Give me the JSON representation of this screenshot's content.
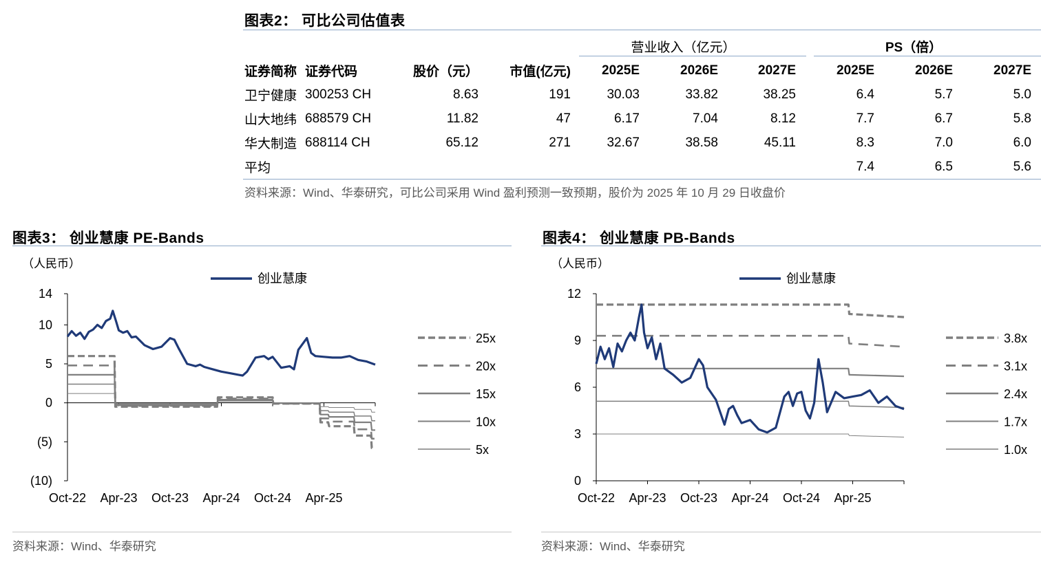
{
  "table": {
    "title": "图表2：  可比公司估值表",
    "group_headers": {
      "revenue": "营业收入（亿元）",
      "ps": "PS（倍）"
    },
    "columns": [
      "证券简称",
      "证券代码",
      "股价（元）",
      "市值(亿元)",
      "2025E",
      "2026E",
      "2027E",
      "2025E",
      "2026E",
      "2027E"
    ],
    "rows": [
      [
        "卫宁健康",
        "300253 CH",
        "8.63",
        "191",
        "30.03",
        "33.82",
        "38.25",
        "6.4",
        "5.7",
        "5.0"
      ],
      [
        "山大地纬",
        "688579 CH",
        "11.82",
        "47",
        "6.17",
        "7.04",
        "8.12",
        "7.7",
        "6.7",
        "5.8"
      ],
      [
        "华大制造",
        "688114 CH",
        "65.12",
        "271",
        "32.67",
        "38.58",
        "45.11",
        "8.3",
        "7.0",
        "6.0"
      ],
      [
        "平均",
        "",
        "",
        "",
        "",
        "",
        "",
        "7.4",
        "6.5",
        "5.6"
      ]
    ],
    "source": "资料来源：Wind、华泰研究，可比公司采用 Wind 盈利预测一致预期，股价为 2025 年 10 月 29 日收盘价"
  },
  "chart3": {
    "title": "图表3：  创业慧康 PE-Bands",
    "source": "资料来源：Wind、华泰研究"
  },
  "chart4": {
    "title": "图表4：  创业慧康 PB-Bands",
    "source": "资料来源：Wind、华泰研究"
  },
  "colors": {
    "stock": "#1f3a78",
    "band": "#7f7f7f",
    "rule": "#8ea9c8"
  },
  "chart_data": [
    {
      "type": "line",
      "title": "创业慧康 PE-Bands",
      "unit_label": "（人民币）",
      "x_ticks": [
        "Oct-22",
        "Apr-23",
        "Oct-23",
        "Apr-24",
        "Oct-24",
        "Apr-25"
      ],
      "x_range": [
        0,
        36
      ],
      "ylim": [
        -10,
        14
      ],
      "y_ticks": [
        14,
        10,
        5,
        0,
        -5,
        -10
      ],
      "y_tick_labels": [
        "14",
        "10",
        "5",
        "0",
        "(5)",
        "(10)"
      ],
      "legend_position": "right",
      "series": [
        {
          "name": "创业慧康",
          "style": "solid-thick",
          "x": [
            0,
            0.5,
            1,
            1.5,
            2,
            2.5,
            3,
            3.5,
            4,
            4.5,
            5,
            5.3,
            5.7,
            6,
            6.5,
            7,
            7.5,
            8,
            9,
            10,
            11,
            12,
            12.5,
            13,
            14,
            15,
            15.5,
            16,
            17,
            18,
            19,
            20,
            20.5,
            21,
            22,
            23,
            23.5,
            24,
            25,
            26,
            26.5,
            27,
            28,
            28.5,
            29,
            30,
            31,
            32,
            33,
            34,
            35,
            36
          ],
          "y": [
            8.5,
            9.2,
            8.6,
            9.0,
            8.2,
            9.1,
            9.4,
            10.0,
            9.6,
            10.5,
            10.8,
            11.8,
            10.4,
            9.3,
            9.0,
            9.2,
            8.4,
            8.5,
            7.4,
            6.9,
            7.2,
            8.3,
            8.1,
            7.0,
            5.0,
            4.7,
            4.9,
            4.6,
            4.3,
            4.0,
            3.8,
            3.6,
            3.5,
            4.0,
            5.8,
            6.0,
            5.6,
            5.9,
            4.5,
            4.7,
            4.3,
            6.8,
            8.3,
            6.4,
            6.0,
            5.9,
            5.8,
            5.8,
            6.0,
            5.5,
            5.3,
            4.9
          ]
        },
        {
          "name": "25x",
          "style": "dashed-thick",
          "x": [
            0,
            5.5,
            5.6,
            17.5,
            17.6,
            24.0,
            24.1,
            29.5,
            29.6,
            30.5,
            30.6,
            33.5,
            33.6,
            35.5,
            35.6,
            36
          ],
          "y": [
            6.0,
            6.0,
            -0.5,
            -0.5,
            0.7,
            0.7,
            -0.1,
            -0.1,
            -2.5,
            -2.5,
            -3.0,
            -3.0,
            -4.2,
            -4.2,
            -5.8,
            -5.8
          ]
        },
        {
          "name": "20x",
          "style": "dashed",
          "x": [
            0,
            5.5,
            5.6,
            17.5,
            17.6,
            24.0,
            24.1,
            29.5,
            29.6,
            30.5,
            30.6,
            33.5,
            33.6,
            35.5,
            35.6,
            36
          ],
          "y": [
            4.8,
            4.8,
            -0.4,
            -0.4,
            0.55,
            0.55,
            -0.1,
            -0.1,
            -2.0,
            -2.0,
            -2.4,
            -2.4,
            -3.4,
            -3.4,
            -4.6,
            -4.6
          ]
        },
        {
          "name": "15x",
          "style": "solid-mid",
          "x": [
            0,
            5.5,
            5.6,
            17.5,
            17.6,
            24.0,
            24.1,
            29.5,
            29.6,
            30.5,
            30.6,
            33.5,
            33.6,
            35.5,
            35.6,
            36
          ],
          "y": [
            3.6,
            3.6,
            -0.3,
            -0.3,
            0.4,
            0.4,
            -0.05,
            -0.05,
            -1.5,
            -1.5,
            -1.8,
            -1.8,
            -2.5,
            -2.5,
            -3.5,
            -3.5
          ]
        },
        {
          "name": "10x",
          "style": "solid-thin",
          "x": [
            0,
            5.5,
            5.6,
            17.5,
            17.6,
            24.0,
            24.1,
            29.5,
            29.6,
            30.5,
            30.6,
            33.5,
            33.6,
            35.5,
            35.6,
            36
          ],
          "y": [
            2.4,
            2.4,
            -0.2,
            -0.2,
            0.3,
            0.3,
            -0.05,
            -0.05,
            -1.0,
            -1.0,
            -1.2,
            -1.2,
            -1.7,
            -1.7,
            -2.3,
            -2.3
          ]
        },
        {
          "name": "5x",
          "style": "solid-hair",
          "x": [
            0,
            5.5,
            5.6,
            17.5,
            17.6,
            24.0,
            24.1,
            29.5,
            29.6,
            30.5,
            30.6,
            33.5,
            33.6,
            35.5,
            35.6,
            36
          ],
          "y": [
            1.2,
            1.2,
            -0.1,
            -0.1,
            0.15,
            0.15,
            0,
            0,
            -0.5,
            -0.5,
            -0.6,
            -0.6,
            -0.85,
            -0.85,
            -1.2,
            -1.2
          ]
        }
      ]
    },
    {
      "type": "line",
      "title": "创业慧康 PB-Bands",
      "unit_label": "（人民币）",
      "x_ticks": [
        "Oct-22",
        "Apr-23",
        "Oct-23",
        "Apr-24",
        "Oct-24",
        "Apr-25"
      ],
      "x_range": [
        0,
        36
      ],
      "ylim": [
        0,
        12
      ],
      "y_ticks": [
        12,
        9,
        6,
        3,
        0
      ],
      "y_tick_labels": [
        "12",
        "9",
        "6",
        "3",
        "0"
      ],
      "legend_position": "right",
      "series": [
        {
          "name": "创业慧康",
          "style": "solid-thick",
          "x": [
            0,
            0.5,
            1,
            1.5,
            2,
            2.5,
            3,
            3.5,
            4,
            4.5,
            5,
            5.3,
            5.6,
            6,
            6.5,
            7,
            7.5,
            8,
            9,
            10,
            11,
            12,
            12.5,
            13,
            14,
            15,
            15.5,
            16,
            16.5,
            17,
            18,
            19,
            20,
            21,
            22,
            22.5,
            23,
            23.5,
            24,
            24.5,
            25,
            25.5,
            26,
            26.5,
            27,
            28,
            29,
            30,
            31,
            32,
            33,
            34,
            35,
            36
          ],
          "y": [
            7.5,
            8.6,
            7.8,
            8.5,
            7.3,
            8.8,
            8.3,
            9.0,
            9.5,
            9.0,
            10.5,
            11.3,
            9.5,
            8.5,
            9.2,
            7.8,
            8.8,
            7.2,
            6.8,
            6.3,
            6.6,
            7.8,
            7.4,
            6.0,
            5.2,
            3.6,
            4.6,
            4.8,
            4.2,
            3.7,
            3.9,
            3.3,
            3.1,
            3.4,
            5.4,
            5.7,
            4.8,
            5.6,
            5.7,
            4.5,
            4.0,
            5.0,
            7.8,
            6.3,
            4.4,
            5.7,
            5.3,
            5.4,
            5.5,
            5.8,
            5.0,
            5.4,
            4.8,
            4.6
          ]
        },
        {
          "name": "3.8x",
          "style": "dashed-thick",
          "x": [
            0,
            29.5,
            29.6,
            36
          ],
          "y": [
            11.3,
            11.3,
            10.7,
            10.5
          ]
        },
        {
          "name": "3.1x",
          "style": "dashed",
          "x": [
            0,
            29.5,
            29.6,
            36
          ],
          "y": [
            9.3,
            9.3,
            8.8,
            8.6
          ]
        },
        {
          "name": "2.4x",
          "style": "solid-mid",
          "x": [
            0,
            29.5,
            29.6,
            36
          ],
          "y": [
            7.2,
            7.2,
            6.8,
            6.7
          ]
        },
        {
          "name": "1.7x",
          "style": "solid-thin",
          "x": [
            0,
            29.5,
            29.6,
            36
          ],
          "y": [
            5.1,
            5.1,
            4.8,
            4.7
          ]
        },
        {
          "name": "1.0x",
          "style": "solid-hair",
          "x": [
            0,
            29.5,
            29.6,
            36
          ],
          "y": [
            3.0,
            3.0,
            2.9,
            2.8
          ]
        }
      ]
    }
  ]
}
